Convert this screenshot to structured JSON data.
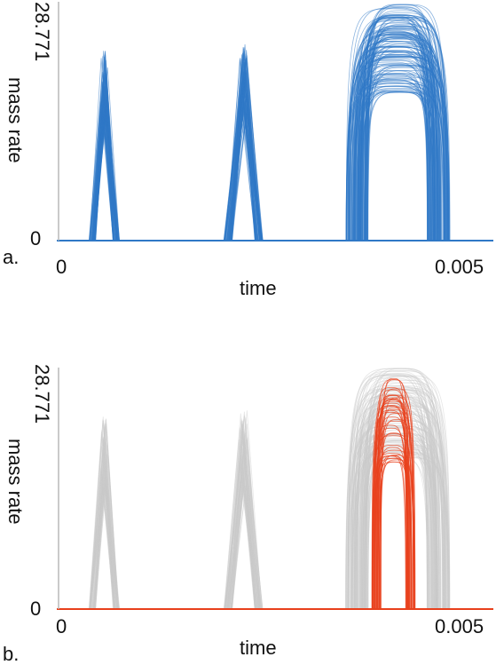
{
  "chart_data": [
    {
      "type": "line",
      "panel_label": "a.",
      "xlabel": "time",
      "ylabel": "mass rate",
      "x_tick_labels": [
        "0",
        "0.005"
      ],
      "y_tick_labels": [
        "0",
        "28.771"
      ],
      "xlim": [
        0,
        0.005
      ],
      "ylim": [
        0,
        28.771
      ],
      "bundle_color": "#2f78c6",
      "highlight_color": "",
      "pulses": [
        {
          "start": 0.00035,
          "end": 0.0007,
          "peak": 23.6
        },
        {
          "start": 0.0019,
          "end": 0.00235,
          "peak": 24.4
        },
        {
          "start": 0.0033,
          "end": 0.0045,
          "peak": 29.6
        }
      ],
      "highlight_pulse": null
    },
    {
      "type": "line",
      "panel_label": "b.",
      "xlabel": "time",
      "ylabel": "mass rate",
      "x_tick_labels": [
        "0",
        "0.005"
      ],
      "y_tick_labels": [
        "0",
        "28.771"
      ],
      "xlim": [
        0,
        0.005
      ],
      "ylim": [
        0,
        28.771
      ],
      "bundle_color": "#c9c9c9",
      "highlight_color": "#e8401c",
      "pulses": [
        {
          "start": 0.00035,
          "end": 0.0007,
          "peak": 23.6
        },
        {
          "start": 0.0019,
          "end": 0.00235,
          "peak": 24.4
        },
        {
          "start": 0.0033,
          "end": 0.0045,
          "peak": 29.6
        }
      ],
      "highlight_pulse": {
        "start": 0.0036,
        "end": 0.0041,
        "peak": 28.8
      }
    }
  ]
}
